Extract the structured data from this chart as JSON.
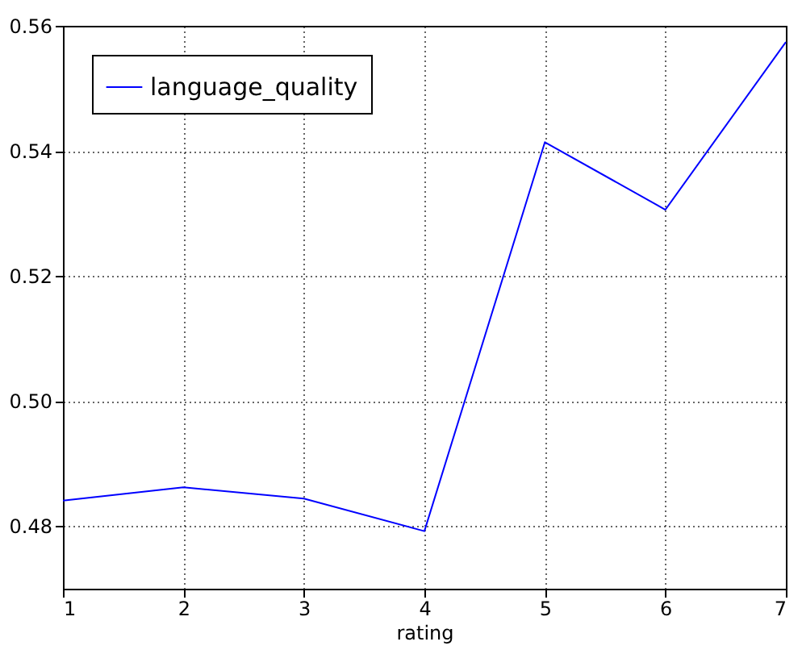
{
  "chart_data": {
    "type": "line",
    "xlabel": "rating",
    "x": [
      1,
      2,
      3,
      4,
      5,
      6,
      7
    ],
    "series": [
      {
        "name": "language_quality",
        "color": "#0000ff",
        "values": [
          0.4841,
          0.4862,
          0.4844,
          0.4792,
          0.5414,
          0.5306,
          0.5574
        ]
      }
    ],
    "xlim": [
      1,
      7
    ],
    "xticks": [
      1,
      2,
      3,
      4,
      5,
      6,
      7
    ],
    "ylim": [
      0.47,
      0.56
    ],
    "yticks": [
      0.48,
      {
        "value": 0.5,
        "label": "0.50"
      },
      0.52,
      0.54,
      0.56
    ],
    "grid": true,
    "legend": "top left",
    "marker": "none",
    "line_style": "solid"
  }
}
